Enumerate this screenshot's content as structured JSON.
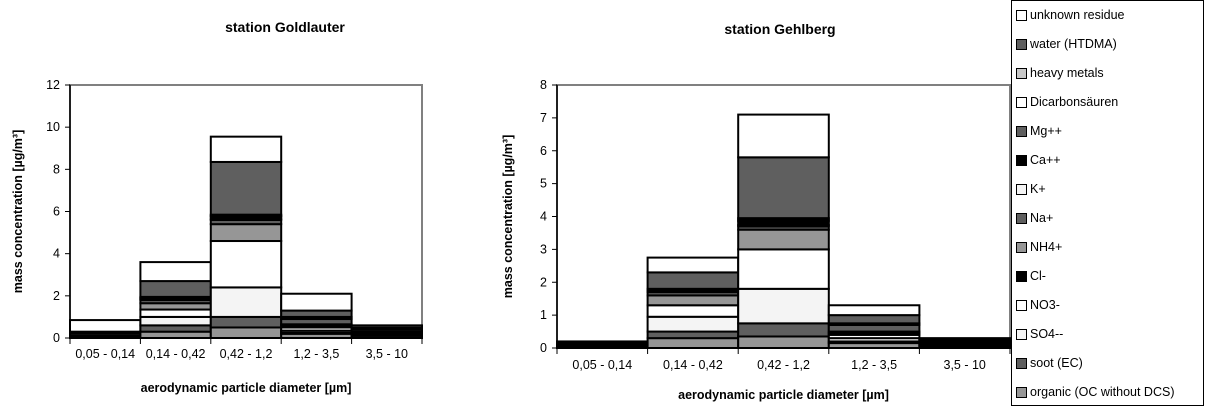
{
  "chart_data": [
    {
      "type": "bar",
      "stacked": true,
      "title": "station Goldlauter",
      "xlabel": "aerodynamic particle diameter [µm]",
      "ylabel": "mass concentration [µg/m³]",
      "ylim": [
        0,
        12
      ],
      "yticks": [
        0,
        2,
        4,
        6,
        8,
        10,
        12
      ],
      "categories": [
        "0,05 - 0,14",
        "0,14 - 0,42",
        "0,42 - 1,2",
        "1,2 - 3,5",
        "3,5 - 10"
      ],
      "series": [
        {
          "name": "organic (OC without DCS)",
          "values": [
            0.05,
            0.3,
            0.5,
            0.2,
            0.1
          ]
        },
        {
          "name": "soot (EC)",
          "values": [
            0.05,
            0.3,
            0.5,
            0.05,
            0.05
          ]
        },
        {
          "name": "SO4--",
          "values": [
            0.1,
            0.4,
            1.4,
            0.1,
            0.05
          ]
        },
        {
          "name": "NO3-",
          "values": [
            0.05,
            0.35,
            2.2,
            0.15,
            0.05
          ]
        },
        {
          "name": "Cl-",
          "values": [
            0.0,
            0.0,
            0.0,
            0.1,
            0.05
          ]
        },
        {
          "name": "NH4+",
          "values": [
            0.05,
            0.3,
            0.8,
            0.05,
            0.0
          ]
        },
        {
          "name": "Na+",
          "values": [
            0.0,
            0.15,
            0.2,
            0.25,
            0.1
          ]
        },
        {
          "name": "K+",
          "values": [
            0.0,
            0.05,
            0.05,
            0.0,
            0.0
          ]
        },
        {
          "name": "Ca++",
          "values": [
            0.0,
            0.05,
            0.1,
            0.1,
            0.05
          ]
        },
        {
          "name": "Mg++",
          "values": [
            0.0,
            0.0,
            0.0,
            0.0,
            0.0
          ]
        },
        {
          "name": "Dicarbonsäuren",
          "values": [
            0.0,
            0.05,
            0.05,
            0.0,
            0.0
          ]
        },
        {
          "name": "heavy metals",
          "values": [
            0.0,
            0.0,
            0.05,
            0.0,
            0.0
          ]
        },
        {
          "name": "water (HTDMA)",
          "values": [
            0.0,
            0.75,
            2.5,
            0.3,
            0.05
          ]
        },
        {
          "name": "unknown residue",
          "values": [
            0.55,
            0.9,
            1.2,
            0.8,
            0.1
          ]
        }
      ]
    },
    {
      "type": "bar",
      "stacked": true,
      "title": "station Gehlberg",
      "xlabel": "aerodynamic particle diameter [µm]",
      "ylabel": "mass concentration [µg/m³]",
      "ylim": [
        0,
        8
      ],
      "yticks": [
        0,
        1,
        2,
        3,
        4,
        5,
        6,
        7,
        8
      ],
      "categories": [
        "0,05 - 0,14",
        "0,14 - 0,42",
        "0,42 - 1,2",
        "1,2 - 3,5",
        "3,5 - 10"
      ],
      "series": [
        {
          "name": "organic (OC without DCS)",
          "values": [
            0.05,
            0.3,
            0.35,
            0.15,
            0.05
          ]
        },
        {
          "name": "soot (EC)",
          "values": [
            0.05,
            0.2,
            0.4,
            0.05,
            0.05
          ]
        },
        {
          "name": "SO4--",
          "values": [
            0.05,
            0.45,
            1.05,
            0.1,
            0.05
          ]
        },
        {
          "name": "NO3-",
          "values": [
            0.0,
            0.35,
            1.2,
            0.1,
            0.05
          ]
        },
        {
          "name": "Cl-",
          "values": [
            0.0,
            0.0,
            0.0,
            0.05,
            0.0
          ]
        },
        {
          "name": "NH4+",
          "values": [
            0.05,
            0.3,
            0.6,
            0.05,
            0.0
          ]
        },
        {
          "name": "Na+",
          "values": [
            0.0,
            0.1,
            0.1,
            0.2,
            0.05
          ]
        },
        {
          "name": "K+",
          "values": [
            0.0,
            0.05,
            0.05,
            0.0,
            0.0
          ]
        },
        {
          "name": "Ca++",
          "values": [
            0.0,
            0.05,
            0.1,
            0.05,
            0.0
          ]
        },
        {
          "name": "Mg++",
          "values": [
            0.0,
            0.0,
            0.0,
            0.0,
            0.0
          ]
        },
        {
          "name": "Dicarbonsäuren",
          "values": [
            0.0,
            0.0,
            0.05,
            0.0,
            0.0
          ]
        },
        {
          "name": "heavy metals",
          "values": [
            0.0,
            0.0,
            0.05,
            0.0,
            0.0
          ]
        },
        {
          "name": "water (HTDMA)",
          "values": [
            0.0,
            0.5,
            1.85,
            0.25,
            0.0
          ]
        },
        {
          "name": "unknown residue",
          "values": [
            0.0,
            0.45,
            1.3,
            0.3,
            0.05
          ]
        }
      ]
    }
  ],
  "legend": {
    "items": [
      {
        "label": "unknown residue",
        "color": "#ffffff"
      },
      {
        "label": "water (HTDMA)",
        "color": "#5f5f5f"
      },
      {
        "label": "heavy metals",
        "color": "#c8c8c8"
      },
      {
        "label": "Dicarbonsäuren",
        "color": "#ffffff"
      },
      {
        "label": "Mg++",
        "color": "#5f5f5f"
      },
      {
        "label": "Ca++",
        "color": "#000000"
      },
      {
        "label": "K+",
        "color": "#f4f4f4"
      },
      {
        "label": "Na+",
        "color": "#5f5f5f"
      },
      {
        "label": "NH4+",
        "color": "#969696"
      },
      {
        "label": "Cl-",
        "color": "#000000"
      },
      {
        "label": "NO3-",
        "color": "#ffffff"
      },
      {
        "label": "SO4--",
        "color": "#f4f4f4"
      },
      {
        "label": "soot (EC)",
        "color": "#5f5f5f"
      },
      {
        "label": "organic (OC without DCS)",
        "color": "#969696"
      }
    ]
  },
  "series_colors": {
    "organic (OC without DCS)": "#969696",
    "soot (EC)": "#5f5f5f",
    "SO4--": "#f4f4f4",
    "NO3-": "#ffffff",
    "Cl-": "#000000",
    "NH4+": "#969696",
    "Na+": "#5f5f5f",
    "K+": "#f4f4f4",
    "Ca++": "#000000",
    "Mg++": "#5f5f5f",
    "Dicarbonsäuren": "#ffffff",
    "heavy metals": "#c8c8c8",
    "water (HTDMA)": "#5f5f5f",
    "unknown residue": "#ffffff"
  }
}
